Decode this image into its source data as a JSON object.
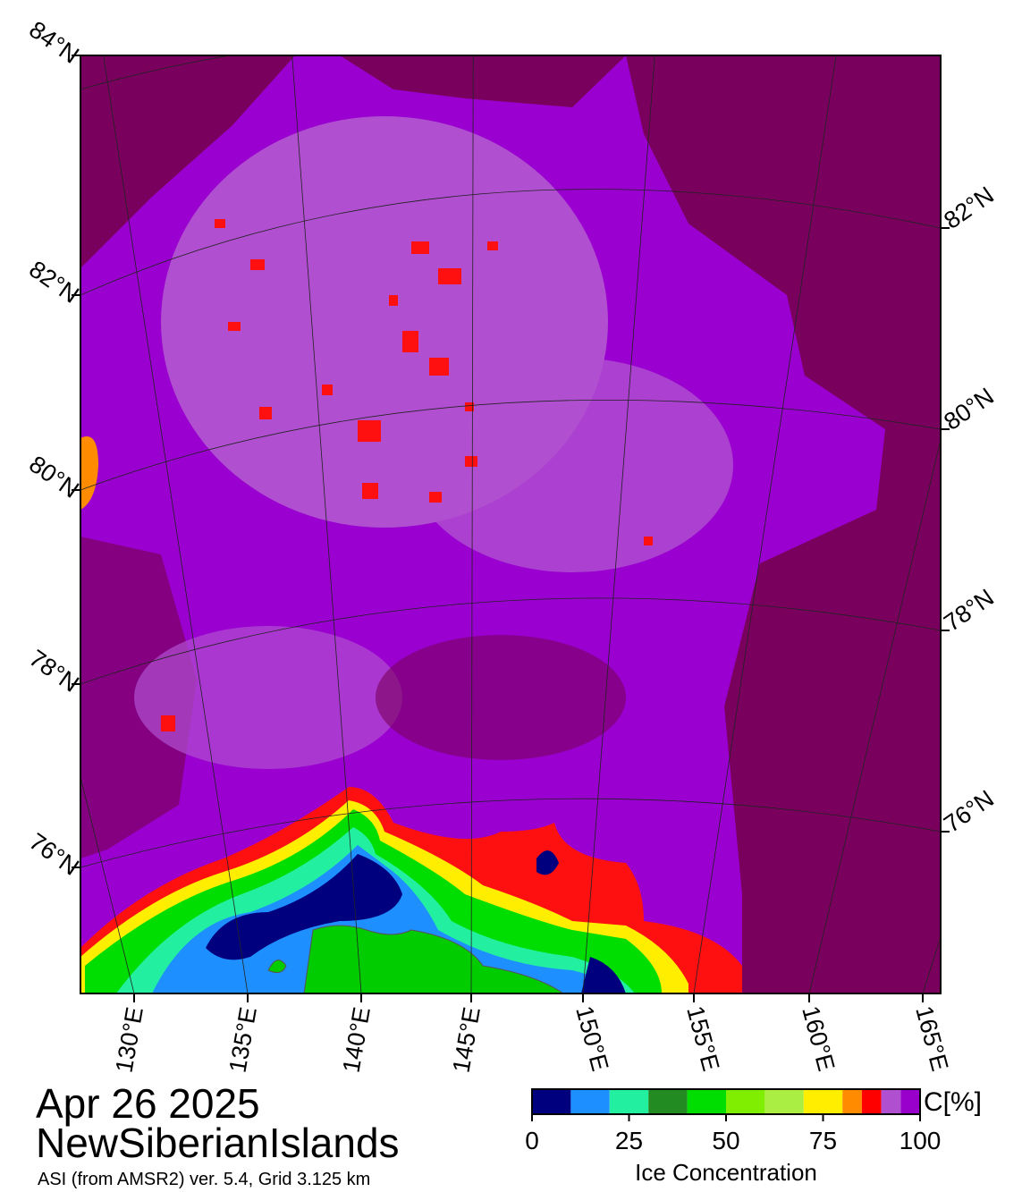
{
  "header": {
    "date": "Apr 26 2025",
    "region": "NewSiberianIslands",
    "source": "ASI (from AMSR2) ver. 5.4,  Grid 3.125 km"
  },
  "map": {
    "lat_labels_left": [
      "84°N",
      "82°N",
      "80°N",
      "78°N",
      "76°N"
    ],
    "lat_labels_right": [
      "82°N",
      "80°N",
      "78°N",
      "76°N"
    ],
    "lon_labels": [
      "130°E",
      "135°E",
      "140°E",
      "145°E",
      "150°E",
      "155°E",
      "160°E",
      "165°E"
    ]
  },
  "colorbar": {
    "bins": [
      0,
      10,
      20,
      30,
      40,
      50,
      60,
      70,
      80,
      85,
      90,
      95,
      100
    ],
    "colors": [
      "#00007f",
      "#1e8fff",
      "#22f0a0",
      "#228b22",
      "#00dd00",
      "#80ee00",
      "#aaee44",
      "#ffee00",
      "#ff8c00",
      "#ff0000",
      "#b050d0",
      "#9900cc"
    ],
    "ticks": [
      0,
      25,
      50,
      75,
      100
    ],
    "unit": "C[%]",
    "label": "Ice Concentration"
  }
}
